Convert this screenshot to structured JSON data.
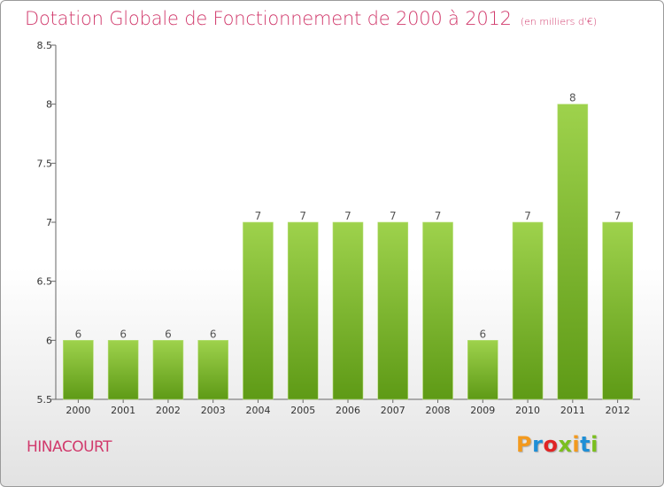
{
  "header": {
    "title": "Dotation Globale de Fonctionnement de 2000 à 2012",
    "subtitle": "(en milliers d'€)"
  },
  "footer": {
    "place": "HINACOURT",
    "logo_text": "Proxiti"
  },
  "colors": {
    "title": "#d13a6c",
    "bar_light": "#9ed24c",
    "bar_dark": "#5e9a16",
    "logo": [
      "#f39a1e",
      "#1f8fd6",
      "#e02424",
      "#7bbf1e",
      "#f39a1e",
      "#1f8fd6",
      "#7bbf1e"
    ]
  },
  "chart_data": {
    "type": "bar",
    "title": "Dotation Globale de Fonctionnement de 2000 à 2012",
    "subtitle": "(en milliers d'€)",
    "categories": [
      "2000",
      "2001",
      "2002",
      "2003",
      "2004",
      "2005",
      "2006",
      "2007",
      "2008",
      "2009",
      "2010",
      "2011",
      "2012"
    ],
    "values": [
      6,
      6,
      6,
      6,
      7,
      7,
      7,
      7,
      7,
      6,
      7,
      8,
      7
    ],
    "data_labels": [
      "6",
      "6",
      "6",
      "6",
      "7",
      "7",
      "7",
      "7",
      "7",
      "6",
      "7",
      "8",
      "7"
    ],
    "ylim": [
      5.5,
      8.5
    ],
    "yticks": [
      5.5,
      6,
      6.5,
      7,
      7.5,
      8,
      8.5
    ],
    "ytick_labels": [
      "5.5",
      "6",
      "6.5",
      "7",
      "7.5",
      "8",
      "8.5"
    ],
    "xlabel": "",
    "ylabel": "",
    "grid": false,
    "legend": "none"
  }
}
